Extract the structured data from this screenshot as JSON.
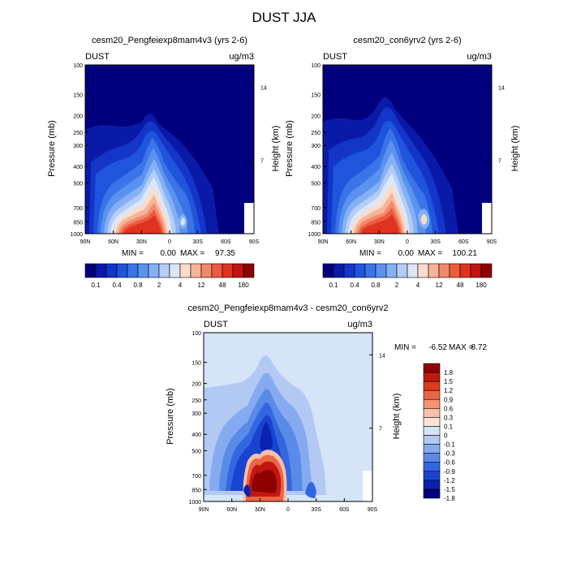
{
  "page_title": "DUST JJA",
  "colors": {
    "dust": [
      "#00007f",
      "#0a1aa8",
      "#1336c8",
      "#1f55dc",
      "#3a74e8",
      "#5b92f0",
      "#85b0f4",
      "#b3cdf6",
      "#dbe6f8",
      "#fbdccb",
      "#f8b498",
      "#f3886a",
      "#ed5a3e",
      "#df3220",
      "#c01510",
      "#8e0000"
    ],
    "diff": [
      "#00007f",
      "#0a22b0",
      "#1a44d0",
      "#3366e0",
      "#5a8ae8",
      "#86aaf0",
      "#b2c9f4",
      "#d6e4f8",
      "#fbe4d6",
      "#f8c0a8",
      "#f39474",
      "#ea6644",
      "#dc3a22",
      "#c01810",
      "#8e0000"
    ]
  },
  "chart_data": [
    {
      "type": "heatmap",
      "id": "exp",
      "title": "cesm20_Pengfeiexp8mam4v3 (yrs 2-6)",
      "left_label": "DUST",
      "right_label": "ug/m3",
      "ylabel": "Pressure (mb)",
      "y2label": "Height (km)",
      "xticks": [
        "90N",
        "60N",
        "30N",
        "0",
        "30S",
        "60S",
        "90S"
      ],
      "yticks": [
        "100",
        "150",
        "200",
        "250",
        "300",
        "400",
        "500",
        "700",
        "850",
        "1000"
      ],
      "y2ticks": [
        "14",
        "7"
      ],
      "stats": {
        "min_label": "MIN =",
        "min": "0.00",
        "max_label": "MAX =",
        "max": "97.35"
      },
      "colorbar": {
        "labels": [
          "0.1",
          "0.4",
          "0.8",
          "2",
          "4",
          "12",
          "48",
          "180"
        ]
      }
    },
    {
      "type": "heatmap",
      "id": "ctl",
      "title": "cesm20_con6yrv2 (yrs 2-6)",
      "left_label": "DUST",
      "right_label": "ug/m3",
      "ylabel": "Pressure (mb)",
      "y2label": "Height (km)",
      "xticks": [
        "90N",
        "60N",
        "30N",
        "0",
        "30S",
        "60S",
        "90S"
      ],
      "yticks": [
        "100",
        "150",
        "200",
        "250",
        "300",
        "400",
        "500",
        "700",
        "850",
        "1000"
      ],
      "y2ticks": [
        "14",
        "7"
      ],
      "stats": {
        "min_label": "MIN =",
        "min": "0.00",
        "max_label": "MAX =",
        "max": "100.21"
      },
      "colorbar": {
        "labels": [
          "0.1",
          "0.4",
          "0.8",
          "2",
          "4",
          "12",
          "48",
          "180"
        ]
      }
    },
    {
      "type": "heatmap",
      "id": "diff",
      "title": "cesm20_Pengfeiexp8mam4v3 - cesm20_con6yrv2",
      "left_label": "DUST",
      "right_label": "ug/m3",
      "ylabel": "Pressure (mb)",
      "y2label": "Height (km)",
      "xticks": [
        "90N",
        "60N",
        "30N",
        "0",
        "30S",
        "60S",
        "90S"
      ],
      "yticks": [
        "100",
        "150",
        "200",
        "250",
        "300",
        "400",
        "500",
        "700",
        "850",
        "1000"
      ],
      "y2ticks": [
        "14",
        "7"
      ],
      "stats": {
        "min_label": "MIN =",
        "min": "-6.52",
        "max_label": "MAX =",
        "max": "8.72"
      },
      "colorbar": {
        "labels": [
          "1.8",
          "1.5",
          "1.2",
          "0.9",
          "0.6",
          "0.3",
          "0.1",
          "0",
          "-0.1",
          "-0.3",
          "-0.6",
          "-0.9",
          "-1.2",
          "-1.5",
          "-1.8"
        ]
      }
    }
  ]
}
